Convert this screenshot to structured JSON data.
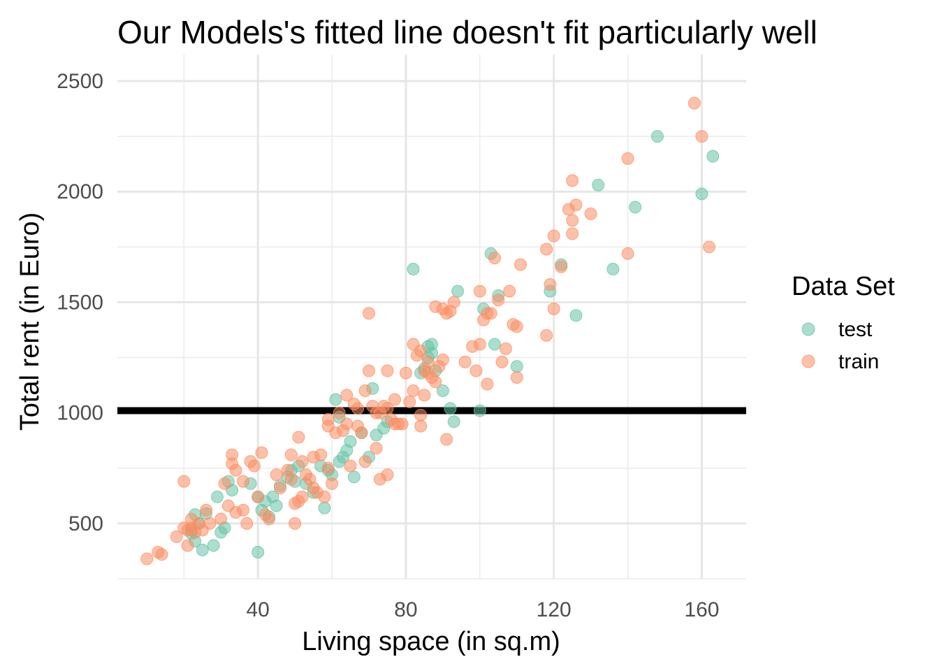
{
  "chart_data": {
    "type": "scatter",
    "title": "Our Models's fitted line doesn't fit particularly well",
    "xlabel": "Living space (in sq.m)",
    "ylabel": "Total rent (in Euro)",
    "xlim": [
      2,
      172
    ],
    "ylim": [
      250,
      2620
    ],
    "x_ticks": [
      40,
      80,
      120,
      160
    ],
    "y_ticks": [
      500,
      1000,
      1500,
      2000,
      2500
    ],
    "grid": true,
    "legend": {
      "title": "Data Set",
      "position": "right"
    },
    "fitted_line": {
      "y": 1010,
      "color": "#000000"
    },
    "series": [
      {
        "name": "test",
        "color": "#66C2A5",
        "points": [
          [
            22,
            455
          ],
          [
            23,
            420
          ],
          [
            22,
            470
          ],
          [
            23,
            540
          ],
          [
            24,
            500
          ],
          [
            25,
            380
          ],
          [
            26,
            545
          ],
          [
            28,
            400
          ],
          [
            29,
            620
          ],
          [
            30,
            460
          ],
          [
            31,
            480
          ],
          [
            32,
            690
          ],
          [
            33,
            650
          ],
          [
            38,
            680
          ],
          [
            40,
            620
          ],
          [
            40,
            370
          ],
          [
            41,
            560
          ],
          [
            42,
            600
          ],
          [
            43,
            530
          ],
          [
            44,
            620
          ],
          [
            45,
            580
          ],
          [
            46,
            670
          ],
          [
            48,
            710
          ],
          [
            49,
            740
          ],
          [
            50,
            690
          ],
          [
            51,
            760
          ],
          [
            53,
            680
          ],
          [
            55,
            640
          ],
          [
            57,
            760
          ],
          [
            58,
            570
          ],
          [
            59,
            740
          ],
          [
            60,
            720
          ],
          [
            61,
            1060
          ],
          [
            62,
            980
          ],
          [
            62,
            780
          ],
          [
            63,
            800
          ],
          [
            64,
            830
          ],
          [
            65,
            870
          ],
          [
            66,
            710
          ],
          [
            68,
            910
          ],
          [
            70,
            800
          ],
          [
            71,
            1110
          ],
          [
            72,
            900
          ],
          [
            74,
            930
          ],
          [
            75,
            960
          ],
          [
            82,
            1650
          ],
          [
            84,
            1180
          ],
          [
            85,
            1200
          ],
          [
            86,
            1250
          ],
          [
            86,
            1300
          ],
          [
            87,
            1310
          ],
          [
            87,
            1270
          ],
          [
            88,
            1190
          ],
          [
            90,
            1100
          ],
          [
            92,
            1020
          ],
          [
            93,
            960
          ],
          [
            94,
            1550
          ],
          [
            100,
            1010
          ],
          [
            101,
            1470
          ],
          [
            103,
            1720
          ],
          [
            104,
            1310
          ],
          [
            105,
            1530
          ],
          [
            110,
            1210
          ],
          [
            119,
            1550
          ],
          [
            122,
            1670
          ],
          [
            126,
            1440
          ],
          [
            132,
            2030
          ],
          [
            136,
            1650
          ],
          [
            142,
            1930
          ],
          [
            148,
            2250
          ],
          [
            160,
            1990
          ],
          [
            163,
            2160
          ]
        ]
      },
      {
        "name": "train",
        "color": "#FC8D62",
        "points": [
          [
            10,
            340
          ],
          [
            13,
            370
          ],
          [
            14,
            360
          ],
          [
            18,
            440
          ],
          [
            20,
            480
          ],
          [
            21,
            470
          ],
          [
            21,
            400
          ],
          [
            22,
            520
          ],
          [
            22,
            480
          ],
          [
            23,
            460
          ],
          [
            24,
            500
          ],
          [
            20,
            690
          ],
          [
            25,
            470
          ],
          [
            26,
            560
          ],
          [
            27,
            500
          ],
          [
            30,
            520
          ],
          [
            31,
            680
          ],
          [
            32,
            580
          ],
          [
            33,
            810
          ],
          [
            33,
            770
          ],
          [
            34,
            740
          ],
          [
            34,
            550
          ],
          [
            36,
            560
          ],
          [
            36,
            690
          ],
          [
            37,
            500
          ],
          [
            38,
            780
          ],
          [
            39,
            760
          ],
          [
            40,
            620
          ],
          [
            41,
            820
          ],
          [
            42,
            540
          ],
          [
            43,
            520
          ],
          [
            45,
            720
          ],
          [
            46,
            660
          ],
          [
            48,
            740
          ],
          [
            49,
            810
          ],
          [
            49,
            700
          ],
          [
            50,
            500
          ],
          [
            50,
            590
          ],
          [
            51,
            890
          ],
          [
            51,
            600
          ],
          [
            52,
            780
          ],
          [
            52,
            620
          ],
          [
            53,
            720
          ],
          [
            54,
            700
          ],
          [
            55,
            800
          ],
          [
            55,
            660
          ],
          [
            56,
            640
          ],
          [
            57,
            810
          ],
          [
            58,
            620
          ],
          [
            59,
            750
          ],
          [
            59,
            970
          ],
          [
            59,
            940
          ],
          [
            60,
            680
          ],
          [
            61,
            910
          ],
          [
            62,
            1000
          ],
          [
            63,
            920
          ],
          [
            64,
            1080
          ],
          [
            64,
            950
          ],
          [
            65,
            760
          ],
          [
            66,
            1040
          ],
          [
            67,
            1020
          ],
          [
            67,
            940
          ],
          [
            68,
            910
          ],
          [
            69,
            1100
          ],
          [
            69,
            780
          ],
          [
            70,
            1190
          ],
          [
            70,
            1450
          ],
          [
            71,
            1030
          ],
          [
            72,
            840
          ],
          [
            72,
            1000
          ],
          [
            73,
            700
          ],
          [
            73,
            1000
          ],
          [
            74,
            1030
          ],
          [
            75,
            720
          ],
          [
            75,
            1190
          ],
          [
            75,
            1020
          ],
          [
            76,
            970
          ],
          [
            77,
            1060
          ],
          [
            77,
            950
          ],
          [
            78,
            950
          ],
          [
            79,
            950
          ],
          [
            80,
            1180
          ],
          [
            81,
            1050
          ],
          [
            82,
            1310
          ],
          [
            82,
            1100
          ],
          [
            83,
            1260
          ],
          [
            84,
            940
          ],
          [
            84,
            1280
          ],
          [
            84,
            990
          ],
          [
            85,
            1190
          ],
          [
            85,
            1080
          ],
          [
            86,
            1180
          ],
          [
            86,
            1230
          ],
          [
            87,
            1160
          ],
          [
            88,
            1140
          ],
          [
            88,
            1480
          ],
          [
            89,
            1210
          ],
          [
            90,
            1470
          ],
          [
            90,
            1240
          ],
          [
            91,
            1450
          ],
          [
            91,
            880
          ],
          [
            92,
            1460
          ],
          [
            93,
            1500
          ],
          [
            96,
            1230
          ],
          [
            98,
            1300
          ],
          [
            99,
            1190
          ],
          [
            100,
            1310
          ],
          [
            100,
            1550
          ],
          [
            101,
            1420
          ],
          [
            102,
            1450
          ],
          [
            102,
            1130
          ],
          [
            103,
            1450
          ],
          [
            104,
            1700
          ],
          [
            105,
            1510
          ],
          [
            106,
            1230
          ],
          [
            107,
            1290
          ],
          [
            108,
            1550
          ],
          [
            109,
            1400
          ],
          [
            110,
            1160
          ],
          [
            111,
            1670
          ],
          [
            110,
            1390
          ],
          [
            118,
            1740
          ],
          [
            118,
            1350
          ],
          [
            119,
            1580
          ],
          [
            120,
            1800
          ],
          [
            120,
            1470
          ],
          [
            122,
            1660
          ],
          [
            124,
            1920
          ],
          [
            125,
            1870
          ],
          [
            125,
            1810
          ],
          [
            125,
            2050
          ],
          [
            126,
            1940
          ],
          [
            130,
            1900
          ],
          [
            140,
            2150
          ],
          [
            140,
            1720
          ],
          [
            158,
            2400
          ],
          [
            160,
            2250
          ],
          [
            162,
            1750
          ]
        ]
      }
    ]
  }
}
